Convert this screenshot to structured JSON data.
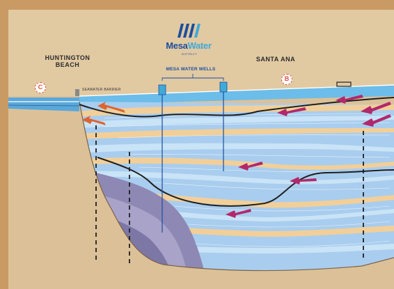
{
  "labels": {
    "huntington_beach": "HUNTINGTON\nBEACH",
    "santa_ana": "SANTA ANA",
    "mesa_water_wells": "MESA WATER WELLS",
    "seawater_barrier": "SEAWATER BARRIER"
  },
  "markers": {
    "c": "C",
    "b": "B"
  },
  "logo": {
    "name_part1": "Mesa",
    "name_part2": "Water",
    "district": "DISTRICT",
    "icon": "mesa-water-wave-logo-icon"
  },
  "colors": {
    "background": "#c99a63",
    "ground": "#dcc198",
    "surface_water": "#63b5e6",
    "aquifer_light": "#bcdcf5",
    "aquifer_tan": "#f2cf98",
    "deep_layer": "#8a86b0",
    "flow_arrows": "#b2286b",
    "flow_arrows_orange": "#e0622e"
  }
}
